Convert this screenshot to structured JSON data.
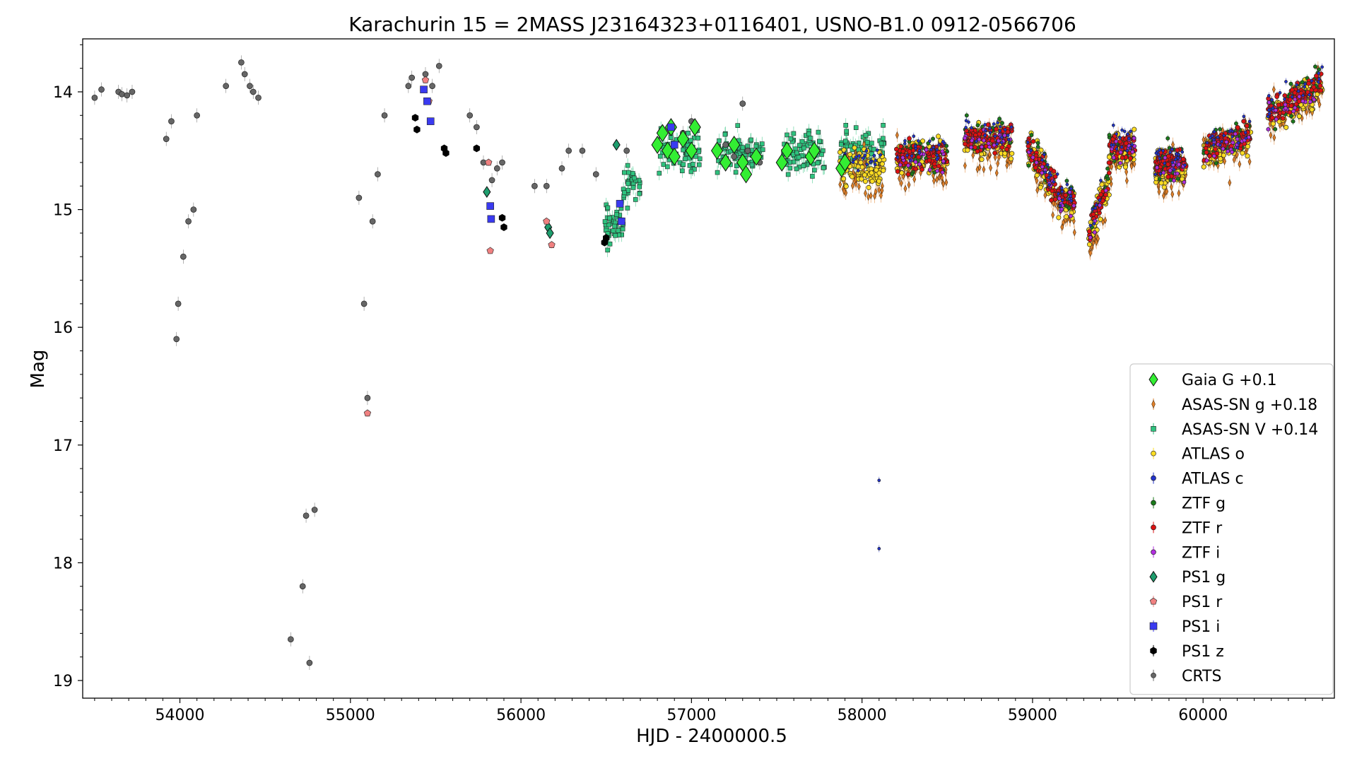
{
  "chart_data": {
    "type": "scatter",
    "title": "Karachurin 15 = 2MASS J23164323+0116401, USNO-B1.0 0912-0566706",
    "xlabel": "HJD - 2400000.5",
    "ylabel": "Mag",
    "xlim": [
      53430,
      60770
    ],
    "ylim": [
      19.15,
      13.55
    ],
    "y_inverted": true,
    "grid": false,
    "legend_position": "lower-right",
    "x_ticks": [
      54000,
      55000,
      56000,
      57000,
      58000,
      59000,
      60000
    ],
    "y_ticks": [
      14,
      15,
      16,
      17,
      18,
      19
    ],
    "x_tick_labels": [
      "54000",
      "55000",
      "56000",
      "57000",
      "58000",
      "59000",
      "60000"
    ],
    "y_tick_labels": [
      "14",
      "15",
      "16",
      "17",
      "18",
      "19"
    ],
    "series": [
      {
        "name": "Gaia G +0.1",
        "marker": "diamond",
        "color": "#33ee33",
        "size": 8,
        "x": [
          56800,
          56830,
          56860,
          56880,
          56900,
          56950,
          57000,
          57020,
          57150,
          57200,
          57250,
          57300,
          57320,
          57380,
          57530,
          57560,
          57700,
          57720,
          57880,
          57900
        ],
        "y": [
          14.45,
          14.35,
          14.5,
          14.3,
          14.55,
          14.4,
          14.5,
          14.3,
          14.5,
          14.6,
          14.45,
          14.6,
          14.7,
          14.55,
          14.6,
          14.5,
          14.55,
          14.5,
          14.65,
          14.6
        ]
      },
      {
        "name": "ASAS-SN g +0.18",
        "marker": "thin-diamond",
        "color": "#e0802a",
        "size": 3,
        "x": [],
        "y": []
      },
      {
        "name": "ASAS-SN V +0.14",
        "marker": "square",
        "color": "#2ec27e",
        "size": 3,
        "x": [],
        "y": []
      },
      {
        "name": "ATLAS o",
        "marker": "circle",
        "color": "#ffdd22",
        "size": 3.2,
        "x": [],
        "y": []
      },
      {
        "name": "ATLAS c",
        "marker": "circle",
        "color": "#2233cc",
        "size": 2,
        "x": [
          58100,
          58100
        ],
        "y": [
          17.3,
          17.88
        ]
      },
      {
        "name": "ZTF g",
        "marker": "circle",
        "color": "#1a7a1a",
        "size": 2.6,
        "x": [],
        "y": []
      },
      {
        "name": "ZTF r",
        "marker": "circle",
        "color": "#dd1111",
        "size": 3,
        "x": [],
        "y": []
      },
      {
        "name": "ZTF i",
        "marker": "circle",
        "color": "#b22ee0",
        "size": 2.6,
        "x": [],
        "y": []
      },
      {
        "name": "PS1 g",
        "marker": "diamond",
        "color": "#1e9e6e",
        "size": 5,
        "x": [
          55800,
          56160,
          56170,
          56560
        ],
        "y": [
          14.85,
          15.15,
          15.2,
          14.45
        ]
      },
      {
        "name": "PS1 r",
        "marker": "pentagon",
        "color": "#f08080",
        "size": 5,
        "x": [
          55100,
          55440,
          55460,
          55810,
          55820,
          56150,
          56180
        ],
        "y": [
          16.73,
          13.9,
          14.08,
          14.6,
          15.35,
          15.1,
          15.3
        ]
      },
      {
        "name": "PS1 i",
        "marker": "square",
        "color": "#3a3af0",
        "size": 5,
        "x": [
          55430,
          55450,
          55470,
          55820,
          55825,
          56580,
          56590,
          56880,
          56900
        ],
        "y": [
          13.98,
          14.08,
          14.25,
          14.97,
          15.08,
          14.95,
          15.1,
          14.3,
          14.45
        ]
      },
      {
        "name": "PS1 z",
        "marker": "hexagon",
        "color": "#000000",
        "size": 5,
        "x": [
          55380,
          55390,
          55550,
          55560,
          55740,
          55890,
          55900,
          56490,
          56500
        ],
        "y": [
          14.22,
          14.32,
          14.48,
          14.52,
          14.48,
          15.07,
          15.15,
          15.28,
          15.24
        ]
      },
      {
        "name": "CRTS",
        "marker": "circle",
        "color": "#666666",
        "size": 4,
        "x": [
          53500,
          53540,
          53640,
          53660,
          53690,
          53720,
          53920,
          53950,
          53980,
          53990,
          54020,
          54050,
          54080,
          54100,
          54270,
          54360,
          54380,
          54410,
          54430,
          54460,
          54650,
          54720,
          54740,
          54760,
          54790,
          55050,
          55080,
          55100,
          55130,
          55160,
          55200,
          55340,
          55360,
          55440,
          55480,
          55520,
          55700,
          55740,
          55780,
          55830,
          55860,
          55890,
          56080,
          56150,
          56240,
          56280,
          56360,
          56440,
          56620,
          56880,
          56950,
          57000,
          57200,
          57250,
          57300,
          57330,
          57400
        ],
        "y": [
          14.05,
          13.98,
          14.0,
          14.02,
          14.03,
          14.0,
          14.4,
          14.25,
          16.1,
          15.8,
          15.4,
          15.1,
          15.0,
          14.2,
          13.95,
          13.75,
          13.85,
          13.95,
          14.0,
          14.05,
          18.65,
          18.2,
          17.6,
          18.85,
          17.55,
          14.9,
          15.8,
          16.6,
          15.1,
          14.7,
          14.2,
          13.95,
          13.88,
          13.85,
          13.95,
          13.78,
          14.2,
          14.3,
          14.6,
          14.75,
          14.65,
          14.6,
          14.8,
          14.8,
          14.65,
          14.5,
          14.5,
          14.7,
          14.5,
          14.3,
          14.35,
          14.25,
          14.45,
          14.55,
          14.1,
          14.5,
          14.6
        ]
      }
    ]
  }
}
